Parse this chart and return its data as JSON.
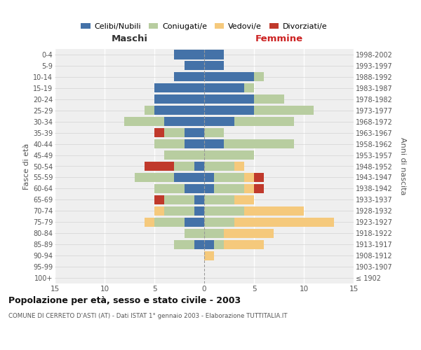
{
  "age_groups": [
    "100+",
    "95-99",
    "90-94",
    "85-89",
    "80-84",
    "75-79",
    "70-74",
    "65-69",
    "60-64",
    "55-59",
    "50-54",
    "45-49",
    "40-44",
    "35-39",
    "30-34",
    "25-29",
    "20-24",
    "15-19",
    "10-14",
    "5-9",
    "0-4"
  ],
  "birth_years": [
    "≤ 1902",
    "1903-1907",
    "1908-1912",
    "1913-1917",
    "1918-1922",
    "1923-1927",
    "1928-1932",
    "1933-1937",
    "1938-1942",
    "1943-1947",
    "1948-1952",
    "1953-1957",
    "1958-1962",
    "1963-1967",
    "1968-1972",
    "1973-1977",
    "1978-1982",
    "1983-1987",
    "1988-1992",
    "1993-1997",
    "1998-2002"
  ],
  "maschi": {
    "celibi": [
      0,
      0,
      0,
      1,
      0,
      2,
      1,
      1,
      2,
      3,
      1,
      0,
      2,
      2,
      4,
      5,
      5,
      5,
      3,
      2,
      3
    ],
    "coniugati": [
      0,
      0,
      0,
      2,
      2,
      3,
      3,
      3,
      3,
      4,
      2,
      4,
      3,
      2,
      4,
      1,
      0,
      0,
      0,
      0,
      0
    ],
    "vedovi": [
      0,
      0,
      0,
      0,
      0,
      1,
      1,
      0,
      0,
      0,
      0,
      0,
      0,
      0,
      0,
      0,
      0,
      0,
      0,
      0,
      0
    ],
    "divorziati": [
      0,
      0,
      0,
      0,
      0,
      0,
      0,
      1,
      0,
      0,
      3,
      0,
      0,
      1,
      0,
      0,
      0,
      0,
      0,
      0,
      0
    ]
  },
  "femmine": {
    "nubili": [
      0,
      0,
      0,
      1,
      0,
      0,
      0,
      0,
      1,
      1,
      0,
      0,
      2,
      0,
      3,
      5,
      5,
      4,
      5,
      2,
      2
    ],
    "coniugate": [
      0,
      0,
      0,
      1,
      2,
      3,
      4,
      3,
      3,
      3,
      3,
      5,
      7,
      2,
      6,
      6,
      3,
      1,
      1,
      0,
      0
    ],
    "vedove": [
      0,
      0,
      1,
      4,
      5,
      10,
      6,
      2,
      1,
      1,
      1,
      0,
      0,
      0,
      0,
      0,
      0,
      0,
      0,
      0,
      0
    ],
    "divorziate": [
      0,
      0,
      0,
      0,
      0,
      0,
      0,
      0,
      1,
      1,
      0,
      0,
      0,
      0,
      0,
      0,
      0,
      0,
      0,
      0,
      0
    ]
  },
  "colors": {
    "celibi_nubili": "#4472a8",
    "coniugati": "#b8cda0",
    "vedovi": "#f5c97c",
    "divorziati": "#c0392b"
  },
  "xlim": 15,
  "title": "Popolazione per età, sesso e stato civile - 2003",
  "subtitle": "COMUNE DI CERRETO D'ASTI (AT) - Dati ISTAT 1° gennaio 2003 - Elaborazione TUTTITALIA.IT",
  "maschi_label": "Maschi",
  "femmine_label": "Femmine",
  "ylabel_left": "Fasce di età",
  "ylabel_right": "Anni di nascita",
  "legend_labels": [
    "Celibi/Nubili",
    "Coniugati/e",
    "Vedovi/e",
    "Divorziati/e"
  ],
  "bg_color": "#ffffff",
  "plot_bg": "#efefef"
}
